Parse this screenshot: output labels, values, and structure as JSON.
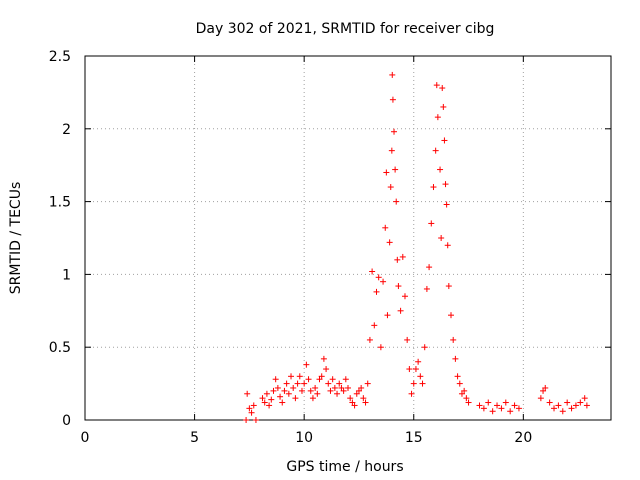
{
  "chart_data": {
    "type": "scatter",
    "title": "Day 302 of 2021, SRMTID for receiver cibg",
    "xlabel": "GPS time / hours",
    "ylabel": "SRMTID / TECUs",
    "xlim": [
      0,
      24
    ],
    "ylim": [
      0,
      2.5
    ],
    "xticks": [
      0,
      5,
      10,
      15,
      20
    ],
    "xtick_labels": [
      "0",
      "5",
      "10",
      "15",
      "20"
    ],
    "yticks": [
      0,
      0.5,
      1,
      1.5,
      2,
      2.5
    ],
    "ytick_labels": [
      "0",
      "0.5",
      "1",
      "1.5",
      "2",
      "2.5"
    ],
    "grid": true,
    "marker": "+",
    "color": "#ff0000",
    "series": [
      {
        "name": "SRMTID",
        "points": [
          [
            7.35,
            0.0
          ],
          [
            7.4,
            0.18
          ],
          [
            7.5,
            0.08
          ],
          [
            7.6,
            0.05
          ],
          [
            7.7,
            0.1
          ],
          [
            7.8,
            0.0
          ],
          [
            8.1,
            0.15
          ],
          [
            8.2,
            0.12
          ],
          [
            8.3,
            0.18
          ],
          [
            8.4,
            0.1
          ],
          [
            8.5,
            0.14
          ],
          [
            8.6,
            0.2
          ],
          [
            8.7,
            0.28
          ],
          [
            8.8,
            0.22
          ],
          [
            8.9,
            0.16
          ],
          [
            9.0,
            0.12
          ],
          [
            9.1,
            0.2
          ],
          [
            9.2,
            0.25
          ],
          [
            9.3,
            0.18
          ],
          [
            9.4,
            0.3
          ],
          [
            9.5,
            0.22
          ],
          [
            9.6,
            0.15
          ],
          [
            9.7,
            0.25
          ],
          [
            9.8,
            0.3
          ],
          [
            9.9,
            0.2
          ],
          [
            10.0,
            0.25
          ],
          [
            10.1,
            0.38
          ],
          [
            10.2,
            0.28
          ],
          [
            10.3,
            0.2
          ],
          [
            10.4,
            0.15
          ],
          [
            10.5,
            0.22
          ],
          [
            10.6,
            0.18
          ],
          [
            10.7,
            0.28
          ],
          [
            10.8,
            0.3
          ],
          [
            10.9,
            0.42
          ],
          [
            11.0,
            0.35
          ],
          [
            11.1,
            0.25
          ],
          [
            11.2,
            0.2
          ],
          [
            11.3,
            0.28
          ],
          [
            11.4,
            0.22
          ],
          [
            11.5,
            0.18
          ],
          [
            11.6,
            0.25
          ],
          [
            11.7,
            0.22
          ],
          [
            11.8,
            0.2
          ],
          [
            11.9,
            0.28
          ],
          [
            12.0,
            0.22
          ],
          [
            12.1,
            0.15
          ],
          [
            12.2,
            0.12
          ],
          [
            12.3,
            0.1
          ],
          [
            12.4,
            0.18
          ],
          [
            12.5,
            0.2
          ],
          [
            12.6,
            0.22
          ],
          [
            12.7,
            0.15
          ],
          [
            12.8,
            0.12
          ],
          [
            12.9,
            0.25
          ],
          [
            13.0,
            0.55
          ],
          [
            13.1,
            1.02
          ],
          [
            13.2,
            0.65
          ],
          [
            13.3,
            0.88
          ],
          [
            13.4,
            0.98
          ],
          [
            13.5,
            0.5
          ],
          [
            13.6,
            0.95
          ],
          [
            13.7,
            1.32
          ],
          [
            13.75,
            1.7
          ],
          [
            13.8,
            0.72
          ],
          [
            13.9,
            1.22
          ],
          [
            13.95,
            1.6
          ],
          [
            14.0,
            1.85
          ],
          [
            14.02,
            2.37
          ],
          [
            14.05,
            2.2
          ],
          [
            14.1,
            1.98
          ],
          [
            14.15,
            1.72
          ],
          [
            14.2,
            1.5
          ],
          [
            14.25,
            1.1
          ],
          [
            14.3,
            0.92
          ],
          [
            14.4,
            0.75
          ],
          [
            14.5,
            1.12
          ],
          [
            14.6,
            0.85
          ],
          [
            14.7,
            0.55
          ],
          [
            14.8,
            0.35
          ],
          [
            14.9,
            0.18
          ],
          [
            15.0,
            0.25
          ],
          [
            15.1,
            0.35
          ],
          [
            15.2,
            0.4
          ],
          [
            15.3,
            0.3
          ],
          [
            15.4,
            0.25
          ],
          [
            15.5,
            0.5
          ],
          [
            15.6,
            0.9
          ],
          [
            15.7,
            1.05
          ],
          [
            15.8,
            1.35
          ],
          [
            15.9,
            1.6
          ],
          [
            16.0,
            1.85
          ],
          [
            16.05,
            2.3
          ],
          [
            16.1,
            2.08
          ],
          [
            16.2,
            1.72
          ],
          [
            16.25,
            1.25
          ],
          [
            16.3,
            2.28
          ],
          [
            16.35,
            2.15
          ],
          [
            16.4,
            1.92
          ],
          [
            16.45,
            1.62
          ],
          [
            16.5,
            1.48
          ],
          [
            16.55,
            1.2
          ],
          [
            16.6,
            0.92
          ],
          [
            16.7,
            0.72
          ],
          [
            16.8,
            0.55
          ],
          [
            16.9,
            0.42
          ],
          [
            17.0,
            0.3
          ],
          [
            17.1,
            0.25
          ],
          [
            17.2,
            0.18
          ],
          [
            17.3,
            0.2
          ],
          [
            17.4,
            0.15
          ],
          [
            17.5,
            0.12
          ],
          [
            18.0,
            0.1
          ],
          [
            18.2,
            0.08
          ],
          [
            18.4,
            0.12
          ],
          [
            18.6,
            0.06
          ],
          [
            18.8,
            0.1
          ],
          [
            19.0,
            0.08
          ],
          [
            19.2,
            0.12
          ],
          [
            19.4,
            0.06
          ],
          [
            19.6,
            0.1
          ],
          [
            19.8,
            0.08
          ],
          [
            20.8,
            0.15
          ],
          [
            20.9,
            0.2
          ],
          [
            21.0,
            0.22
          ],
          [
            21.2,
            0.12
          ],
          [
            21.4,
            0.08
          ],
          [
            21.6,
            0.1
          ],
          [
            21.8,
            0.06
          ],
          [
            22.0,
            0.12
          ],
          [
            22.2,
            0.08
          ],
          [
            22.4,
            0.1
          ],
          [
            22.6,
            0.12
          ],
          [
            22.8,
            0.15
          ],
          [
            22.9,
            0.1
          ]
        ]
      }
    ]
  }
}
